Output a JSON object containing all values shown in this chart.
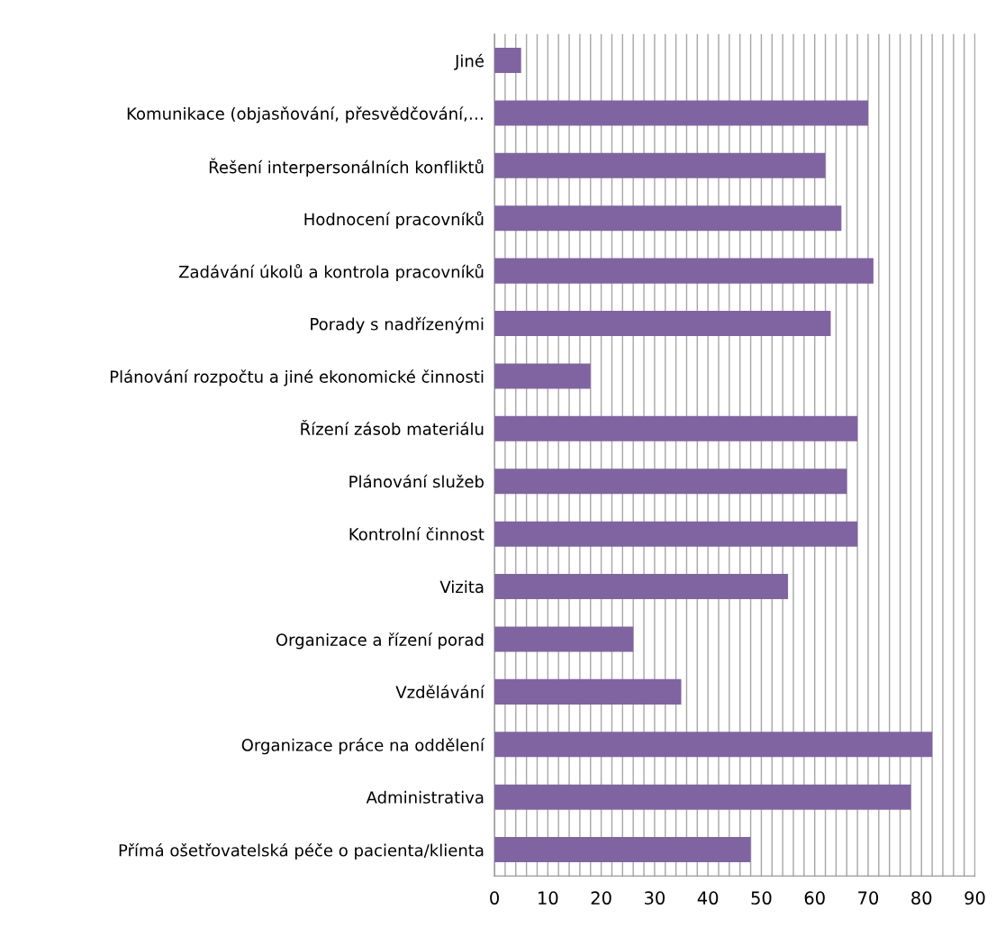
{
  "chart_data": {
    "type": "bar",
    "orientation": "horizontal",
    "categories": [
      "Jiné",
      "Komunikace (objasňování, přesvědčování,…",
      "Řešení interpersonálních konfliktů",
      "Hodnocení pracovníků",
      "Zadávání úkolů a kontrola pracovníků",
      "Porady s nadřízenými",
      "Plánování rozpočtu a jiné ekonomické činnosti",
      "Řízení zásob materiálu",
      "Plánování služeb",
      "Kontrolní činnost",
      "Vizita",
      "Organizace a řízení porad",
      "Vzdělávání",
      "Organizace práce na oddělení",
      "Administrativa",
      "Přímá ošetřovatelská péče o pacienta/klienta"
    ],
    "values": [
      5,
      70,
      62,
      65,
      71,
      63,
      18,
      68,
      66,
      68,
      55,
      26,
      35,
      82,
      78,
      48
    ],
    "color": "#8064a2",
    "xlim": [
      0,
      90
    ],
    "xticks": [
      0,
      {
        "value": 2,
        "label": null
      },
      {
        "value": 4,
        "label": null
      },
      {
        "value": 6,
        "label": null
      },
      {
        "value": 8,
        "label": null
      },
      10,
      {
        "value": 12,
        "label": null
      },
      {
        "value": 14,
        "label": null
      },
      {
        "value": 16,
        "label": null
      },
      {
        "value": 18,
        "label": null
      },
      20,
      {
        "value": 22,
        "label": null
      },
      {
        "value": 24,
        "label": null
      },
      {
        "value": 26,
        "label": null
      },
      {
        "value": 28,
        "label": null
      },
      30,
      {
        "value": 32,
        "label": null
      },
      {
        "value": 34,
        "label": null
      },
      {
        "value": 36,
        "label": null
      },
      {
        "value": 38,
        "label": null
      },
      40,
      {
        "value": 42,
        "label": null
      },
      {
        "value": 44,
        "label": null
      },
      {
        "value": 46,
        "label": null
      },
      {
        "value": 48,
        "label": null
      },
      50,
      {
        "value": 52,
        "label": null
      },
      {
        "value": 54,
        "label": null
      },
      {
        "value": 56,
        "label": null
      },
      {
        "value": 58,
        "label": null
      },
      60,
      {
        "value": 62,
        "label": null
      },
      {
        "value": 64,
        "label": null
      },
      {
        "value": 66,
        "label": null
      },
      {
        "value": 68,
        "label": null
      },
      70,
      {
        "value": 72,
        "label": null
      },
      {
        "value": 74,
        "label": null
      },
      {
        "value": 76,
        "label": null
      },
      {
        "value": 78,
        "label": null
      },
      80,
      {
        "value": 82,
        "label": null
      },
      {
        "value": 84,
        "label": null
      },
      {
        "value": 86,
        "label": null
      },
      {
        "value": 88,
        "label": null
      },
      90
    ],
    "grid": "x",
    "legend": false
  }
}
